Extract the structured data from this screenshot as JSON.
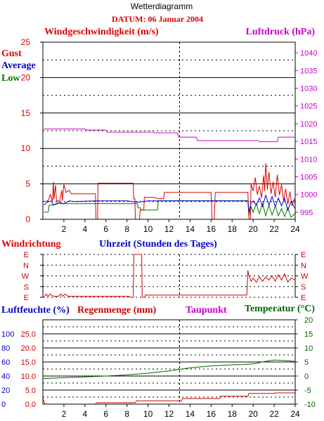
{
  "header": {
    "title": "Wetterdiagramm",
    "date_label": "DATUM: 06 Januar 2004"
  },
  "colors": {
    "gust": "#dd0000",
    "average": "#0000cc",
    "low": "#007700",
    "pressure": "#cc00cc",
    "direction": "#cc0000",
    "humidity": "#0000cc",
    "rain": "#cc0000",
    "dewpoint": "#cc00cc",
    "temperature": "#006600"
  },
  "chart_data": [
    {
      "id": "wind",
      "type": "line",
      "title": "Windgeschwindigkeit (m/s)",
      "right_title": "Luftdruck (hPa)",
      "xlabel": "Uhrzeit (Stunden des Tages)",
      "x_ticks": [
        "2",
        "4",
        "6",
        "8",
        "10",
        "12",
        "14",
        "16",
        "18",
        "20",
        "22",
        "24"
      ],
      "xlim": [
        0,
        24
      ],
      "ylim": [
        0,
        25
      ],
      "y_ticks": [
        "0",
        "5",
        "10",
        "15",
        "20",
        "25"
      ],
      "y2lim": [
        993,
        1043
      ],
      "y2_ticks": [
        "995",
        "1000",
        "1005",
        "1010",
        "1015",
        "1020",
        "1025",
        "1030",
        "1035",
        "1040"
      ],
      "legend": [
        "Gust",
        "Average",
        "Low"
      ],
      "series": [
        {
          "name": "Gust",
          "axis": "left",
          "points": [
            [
              0.1,
              2.5
            ],
            [
              0.5,
              2.6
            ],
            [
              0.7,
              3.5
            ],
            [
              0.9,
              2.6
            ],
            [
              1.0,
              5.3
            ],
            [
              1.05,
              2.8
            ],
            [
              1.2,
              4.8
            ],
            [
              1.3,
              2.6
            ],
            [
              1.6,
              2.6
            ],
            [
              1.8,
              4.1
            ],
            [
              1.85,
              2.6
            ],
            [
              2.0,
              4.9
            ],
            [
              2.2,
              3.8
            ],
            [
              2.5,
              4.1
            ],
            [
              2.7,
              3.6
            ],
            [
              3.0,
              3.6
            ],
            [
              4.2,
              3.6
            ],
            [
              5.0,
              3.6
            ],
            [
              5.05,
              0.0
            ],
            [
              5.2,
              0.0
            ],
            [
              5.25,
              5.1
            ],
            [
              6.0,
              5.1
            ],
            [
              7.0,
              5.1
            ],
            [
              8.0,
              5.1
            ],
            [
              8.6,
              5.1
            ],
            [
              8.65,
              2.9
            ],
            [
              8.75,
              2.9
            ],
            [
              8.8,
              0.0
            ],
            [
              9.2,
              0.0
            ],
            [
              9.25,
              1.3
            ],
            [
              9.6,
              1.3
            ],
            [
              9.65,
              3.1
            ],
            [
              10.5,
              3.1
            ],
            [
              11.0,
              2.9
            ],
            [
              11.5,
              2.9
            ],
            [
              11.55,
              3.8
            ],
            [
              13.0,
              3.8
            ],
            [
              14.0,
              3.8
            ],
            [
              15.0,
              3.8
            ],
            [
              16.0,
              3.8
            ],
            [
              16.1,
              0.0
            ],
            [
              16.3,
              0.0
            ],
            [
              16.4,
              3.8
            ],
            [
              18.0,
              3.8
            ],
            [
              19.5,
              3.8
            ],
            [
              19.6,
              0.0
            ],
            [
              19.75,
              0.0
            ],
            [
              19.8,
              5.0
            ],
            [
              20.0,
              4.0
            ],
            [
              20.2,
              5.9
            ],
            [
              20.4,
              3.5
            ],
            [
              20.6,
              4.7
            ],
            [
              20.8,
              3.0
            ],
            [
              21.0,
              6.2
            ],
            [
              21.1,
              4.0
            ],
            [
              21.2,
              7.9
            ],
            [
              21.35,
              4.2
            ],
            [
              21.5,
              6.7
            ],
            [
              21.7,
              3.6
            ],
            [
              21.9,
              5.3
            ],
            [
              22.1,
              3.1
            ],
            [
              22.3,
              6.3
            ],
            [
              22.5,
              3.4
            ],
            [
              22.7,
              4.9
            ],
            [
              22.9,
              2.6
            ],
            [
              23.1,
              4.3
            ],
            [
              23.3,
              2.1
            ],
            [
              23.5,
              3.9
            ],
            [
              23.7,
              1.9
            ],
            [
              23.9,
              2.8
            ],
            [
              24.0,
              2.0
            ]
          ]
        },
        {
          "name": "Average",
          "axis": "left",
          "points": [
            [
              0.1,
              2.0
            ],
            [
              0.4,
              2.4
            ],
            [
              0.8,
              2.6
            ],
            [
              1.0,
              2.0
            ],
            [
              1.5,
              2.4
            ],
            [
              2.0,
              2.2
            ],
            [
              2.5,
              2.6
            ],
            [
              3.0,
              2.5
            ],
            [
              5.0,
              2.6
            ],
            [
              8.0,
              2.6
            ],
            [
              9.0,
              2.4
            ],
            [
              10.0,
              2.6
            ],
            [
              13.0,
              2.6
            ],
            [
              16.0,
              2.6
            ],
            [
              19.5,
              2.6
            ],
            [
              19.6,
              1.0
            ],
            [
              19.8,
              2.3
            ],
            [
              20.0,
              2.6
            ],
            [
              20.3,
              2.0
            ],
            [
              20.6,
              3.0
            ],
            [
              20.9,
              1.8
            ],
            [
              21.2,
              3.4
            ],
            [
              21.5,
              2.0
            ],
            [
              21.8,
              3.2
            ],
            [
              22.1,
              1.8
            ],
            [
              22.4,
              3.0
            ],
            [
              22.7,
              1.9
            ],
            [
              23.0,
              2.9
            ],
            [
              23.3,
              1.3
            ],
            [
              23.6,
              2.5
            ],
            [
              24.0,
              1.5
            ]
          ]
        },
        {
          "name": "Low",
          "axis": "left",
          "points": [
            [
              0.1,
              1.0
            ],
            [
              0.5,
              1.0
            ],
            [
              0.6,
              2.0
            ],
            [
              1.0,
              2.0
            ],
            [
              1.5,
              2.2
            ],
            [
              2.0,
              2.2
            ],
            [
              5.0,
              2.2
            ],
            [
              8.0,
              2.2
            ],
            [
              9.0,
              2.2
            ],
            [
              9.05,
              1.6
            ],
            [
              9.3,
              1.6
            ],
            [
              9.35,
              1.3
            ],
            [
              10.9,
              1.3
            ],
            [
              11.0,
              2.6
            ],
            [
              13.0,
              2.6
            ],
            [
              19.5,
              2.6
            ],
            [
              19.6,
              0.5
            ],
            [
              19.8,
              1.8
            ],
            [
              20.0,
              1.0
            ],
            [
              20.3,
              2.2
            ],
            [
              20.6,
              0.8
            ],
            [
              20.9,
              2.2
            ],
            [
              21.2,
              0.5
            ],
            [
              21.5,
              2.0
            ],
            [
              21.8,
              0.6
            ],
            [
              22.1,
              1.9
            ],
            [
              22.4,
              0.5
            ],
            [
              22.7,
              1.5
            ],
            [
              23.0,
              0.4
            ],
            [
              23.3,
              1.6
            ],
            [
              23.6,
              0.3
            ],
            [
              24.0,
              0.8
            ]
          ]
        },
        {
          "name": "Luftdruck",
          "axis": "right",
          "points": [
            [
              0.1,
              1018.5
            ],
            [
              4.0,
              1018.5
            ],
            [
              4.1,
              1018.2
            ],
            [
              6.0,
              1018.2
            ],
            [
              6.1,
              1017.6
            ],
            [
              10.5,
              1017.6
            ],
            [
              10.6,
              1017.4
            ],
            [
              12.8,
              1017.4
            ],
            [
              12.9,
              1016.2
            ],
            [
              14.6,
              1016.2
            ],
            [
              14.7,
              1015.2
            ],
            [
              20.5,
              1015.2
            ],
            [
              20.6,
              1014.9
            ],
            [
              22.3,
              1014.9
            ],
            [
              22.4,
              1016.2
            ],
            [
              24.0,
              1016.2
            ]
          ]
        }
      ]
    },
    {
      "id": "direction",
      "type": "line",
      "title": "Windrichtung",
      "xlim": [
        0,
        24
      ],
      "y_ticks": [
        "E",
        "N",
        "W",
        "S",
        "E"
      ],
      "ylim": [
        0,
        4
      ],
      "series": [
        {
          "name": "Windrichtung",
          "points": [
            [
              0.1,
              0.0
            ],
            [
              0.3,
              0.3
            ],
            [
              0.5,
              0.1
            ],
            [
              0.7,
              0.3
            ],
            [
              1.0,
              0.1
            ],
            [
              1.5,
              0.1
            ],
            [
              1.7,
              0.3
            ],
            [
              1.9,
              0.1
            ],
            [
              2.1,
              0.3
            ],
            [
              2.4,
              0.1
            ],
            [
              3.0,
              0.1
            ],
            [
              8.2,
              0.1
            ],
            [
              8.3,
              0.0
            ],
            [
              8.6,
              0.0
            ],
            [
              8.65,
              4.0
            ],
            [
              9.4,
              4.0
            ],
            [
              9.45,
              0.0
            ],
            [
              9.7,
              0.0
            ],
            [
              9.75,
              0.2
            ],
            [
              19.4,
              0.2
            ],
            [
              19.5,
              2.5
            ],
            [
              19.6,
              2.0
            ],
            [
              19.8,
              1.5
            ],
            [
              20.0,
              1.8
            ],
            [
              20.3,
              1.4
            ],
            [
              20.6,
              1.9
            ],
            [
              20.9,
              1.5
            ],
            [
              21.2,
              1.9
            ],
            [
              21.5,
              1.6
            ],
            [
              21.8,
              2.0
            ],
            [
              22.1,
              1.5
            ],
            [
              22.4,
              2.1
            ],
            [
              22.7,
              1.6
            ],
            [
              23.0,
              2.2
            ],
            [
              23.3,
              1.4
            ],
            [
              23.6,
              1.8
            ],
            [
              24.0,
              1.6
            ]
          ]
        }
      ]
    },
    {
      "id": "humidity",
      "type": "line",
      "legend": [
        "Luftfeuchte (%)",
        "Regenmenge (mm)",
        "Taupunkt",
        "Temperatur (°C)"
      ],
      "xlim": [
        0,
        24
      ],
      "x_ticks": [
        "2",
        "4",
        "6",
        "8",
        "10",
        "12",
        "14",
        "16",
        "18",
        "20",
        "22",
        "24"
      ],
      "ylim": [
        0,
        120
      ],
      "y_ticks_humidity": [
        "0",
        "20",
        "40",
        "60",
        "80",
        "100"
      ],
      "y_ticks_rain": [
        "0.0",
        "5.0",
        "10.0",
        "15.0",
        "20.0",
        "25.0"
      ],
      "y2lim": [
        -10,
        20
      ],
      "y2_ticks": [
        "-10",
        "-5",
        "0",
        "5",
        "10",
        "15",
        "20"
      ],
      "series": [
        {
          "name": "Temperatur",
          "axis": "right",
          "points": [
            [
              0.0,
              -0.9
            ],
            [
              2.0,
              -0.6
            ],
            [
              4.0,
              -0.3
            ],
            [
              6.0,
              0.0
            ],
            [
              8.0,
              0.4
            ],
            [
              10.0,
              1.0
            ],
            [
              12.0,
              1.8
            ],
            [
              14.0,
              2.9
            ],
            [
              16.0,
              3.6
            ],
            [
              18.0,
              4.0
            ],
            [
              19.0,
              4.1
            ],
            [
              20.0,
              4.3
            ],
            [
              21.0,
              5.1
            ],
            [
              22.0,
              5.7
            ],
            [
              23.0,
              5.5
            ],
            [
              24.0,
              5.2
            ]
          ]
        },
        {
          "name": "Regenmenge",
          "axis": "rain",
          "points": [
            [
              0.0,
              2.0
            ],
            [
              0.2,
              0.0
            ],
            [
              5.0,
              0.0
            ],
            [
              5.1,
              0.5
            ],
            [
              8.8,
              0.5
            ],
            [
              8.9,
              1.2
            ],
            [
              13.2,
              1.2
            ],
            [
              13.3,
              2.0
            ],
            [
              16.8,
              2.0
            ],
            [
              16.9,
              2.8
            ],
            [
              19.5,
              2.8
            ],
            [
              19.6,
              3.8
            ],
            [
              22.0,
              3.8
            ],
            [
              22.1,
              4.0
            ],
            [
              24.0,
              4.0
            ]
          ]
        }
      ]
    }
  ]
}
